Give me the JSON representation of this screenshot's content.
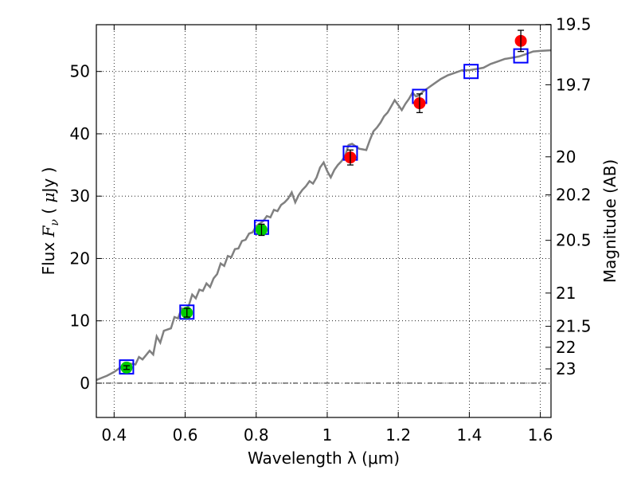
{
  "chart_data": {
    "type": "scatter",
    "title": "",
    "xlabel": "Wavelength  λ (μm)",
    "ylabel_left": {
      "prefix": "Flux ",
      "symbol": "F",
      "subscript": "ν",
      "unit_open": " (  ",
      "unit_mu": "μ",
      "unit_rest": "Jy )"
    },
    "ylabel_right": "Magnitude (AB)",
    "xlim": [
      0.35,
      1.63
    ],
    "ylim": [
      -5.5,
      57.5
    ],
    "grid": true,
    "xticks": [
      {
        "value": 0.4,
        "label": "0.4"
      },
      {
        "value": 0.6,
        "label": "0.6"
      },
      {
        "value": 0.8,
        "label": "0.8"
      },
      {
        "value": 1.0,
        "label": "1"
      },
      {
        "value": 1.2,
        "label": "1.2"
      },
      {
        "value": 1.4,
        "label": "1.4"
      },
      {
        "value": 1.6,
        "label": "1.6"
      }
    ],
    "yticks": [
      {
        "value": 0,
        "label": "0"
      },
      {
        "value": 10,
        "label": "10"
      },
      {
        "value": 20,
        "label": "20"
      },
      {
        "value": 30,
        "label": "30"
      },
      {
        "value": 40,
        "label": "40"
      },
      {
        "value": 50,
        "label": "50"
      }
    ],
    "mag_ticks": [
      {
        "value": 19.5,
        "label": "19.5"
      },
      {
        "value": 19.7,
        "label": "19.7"
      },
      {
        "value": 20,
        "label": "20"
      },
      {
        "value": 20.2,
        "label": "20.2"
      },
      {
        "value": 20.5,
        "label": "20.5"
      },
      {
        "value": 21,
        "label": "21"
      },
      {
        "value": 21.5,
        "label": "21.5"
      },
      {
        "value": 22,
        "label": "22"
      },
      {
        "value": 23,
        "label": "23"
      }
    ],
    "series": [
      {
        "kind": "line",
        "color": "#808080",
        "points": [
          [
            0.35,
            0.5
          ],
          [
            0.38,
            1.2
          ],
          [
            0.4,
            1.8
          ],
          [
            0.42,
            2.6
          ],
          [
            0.44,
            3.2
          ],
          [
            0.46,
            3.0
          ],
          [
            0.47,
            4.2
          ],
          [
            0.48,
            3.8
          ],
          [
            0.5,
            5.2
          ],
          [
            0.51,
            4.6
          ],
          [
            0.52,
            7.5
          ],
          [
            0.53,
            6.5
          ],
          [
            0.54,
            8.4
          ],
          [
            0.56,
            8.8
          ],
          [
            0.57,
            10.6
          ],
          [
            0.58,
            10.4
          ],
          [
            0.59,
            12.0
          ],
          [
            0.6,
            11.8
          ],
          [
            0.61,
            12.4
          ],
          [
            0.62,
            14.2
          ],
          [
            0.63,
            13.6
          ],
          [
            0.64,
            15.0
          ],
          [
            0.65,
            14.8
          ],
          [
            0.66,
            16.0
          ],
          [
            0.67,
            15.4
          ],
          [
            0.68,
            16.8
          ],
          [
            0.69,
            17.5
          ],
          [
            0.7,
            19.2
          ],
          [
            0.71,
            18.8
          ],
          [
            0.72,
            20.4
          ],
          [
            0.73,
            20.2
          ],
          [
            0.74,
            21.5
          ],
          [
            0.75,
            21.6
          ],
          [
            0.76,
            22.8
          ],
          [
            0.77,
            23.0
          ],
          [
            0.78,
            24.0
          ],
          [
            0.79,
            24.2
          ],
          [
            0.8,
            25.2
          ],
          [
            0.81,
            25.6
          ],
          [
            0.82,
            26.0
          ],
          [
            0.83,
            26.8
          ],
          [
            0.84,
            26.6
          ],
          [
            0.85,
            27.8
          ],
          [
            0.86,
            27.6
          ],
          [
            0.87,
            28.6
          ],
          [
            0.88,
            29.0
          ],
          [
            0.89,
            29.6
          ],
          [
            0.9,
            30.6
          ],
          [
            0.91,
            29.0
          ],
          [
            0.92,
            30.2
          ],
          [
            0.93,
            31.0
          ],
          [
            0.94,
            31.6
          ],
          [
            0.95,
            32.4
          ],
          [
            0.96,
            32.0
          ],
          [
            0.97,
            33.0
          ],
          [
            0.98,
            34.6
          ],
          [
            0.99,
            35.4
          ],
          [
            1.0,
            34.0
          ],
          [
            1.01,
            33.0
          ],
          [
            1.02,
            34.2
          ],
          [
            1.03,
            35.0
          ],
          [
            1.04,
            35.6
          ],
          [
            1.05,
            36.4
          ],
          [
            1.06,
            38.2
          ],
          [
            1.07,
            38.4
          ],
          [
            1.08,
            38.0
          ],
          [
            1.09,
            37.6
          ],
          [
            1.1,
            37.5
          ],
          [
            1.11,
            37.4
          ],
          [
            1.12,
            39.0
          ],
          [
            1.13,
            40.4
          ],
          [
            1.14,
            41.0
          ],
          [
            1.15,
            41.8
          ],
          [
            1.16,
            42.8
          ],
          [
            1.17,
            43.4
          ],
          [
            1.18,
            44.4
          ],
          [
            1.19,
            45.4
          ],
          [
            1.2,
            44.6
          ],
          [
            1.21,
            43.8
          ],
          [
            1.22,
            44.8
          ],
          [
            1.23,
            45.6
          ],
          [
            1.24,
            46.6
          ],
          [
            1.25,
            46.0
          ],
          [
            1.26,
            46.2
          ],
          [
            1.27,
            46.8
          ],
          [
            1.28,
            47.2
          ],
          [
            1.3,
            48.0
          ],
          [
            1.32,
            48.8
          ],
          [
            1.34,
            49.4
          ],
          [
            1.36,
            49.8
          ],
          [
            1.38,
            50.2
          ],
          [
            1.4,
            50.2
          ],
          [
            1.42,
            50.4
          ],
          [
            1.44,
            50.6
          ],
          [
            1.46,
            51.2
          ],
          [
            1.48,
            51.6
          ],
          [
            1.5,
            52.0
          ],
          [
            1.52,
            52.2
          ],
          [
            1.54,
            52.4
          ],
          [
            1.56,
            52.8
          ],
          [
            1.58,
            53.2
          ],
          [
            1.6,
            53.3
          ],
          [
            1.63,
            53.4
          ]
        ]
      },
      {
        "kind": "squares",
        "color": "#0000ff",
        "points": [
          [
            0.435,
            2.6
          ],
          [
            0.605,
            11.4
          ],
          [
            0.815,
            25.0
          ],
          [
            1.065,
            36.9
          ],
          [
            1.26,
            46.0
          ],
          [
            1.405,
            50.0
          ],
          [
            1.545,
            52.5
          ]
        ]
      },
      {
        "kind": "points",
        "color": "#00cc00",
        "points": [
          {
            "x": 0.435,
            "y": 2.5,
            "err": 0.3
          },
          {
            "x": 0.605,
            "y": 11.3,
            "err": 0.7
          },
          {
            "x": 0.815,
            "y": 24.6,
            "err": 0.9
          }
        ]
      },
      {
        "kind": "points",
        "color": "#ff0000",
        "points": [
          {
            "x": 1.065,
            "y": 36.2,
            "err": 1.2
          },
          {
            "x": 1.26,
            "y": 44.9,
            "err": 1.5
          },
          {
            "x": 1.545,
            "y": 54.9,
            "err": 1.7
          }
        ]
      }
    ]
  }
}
